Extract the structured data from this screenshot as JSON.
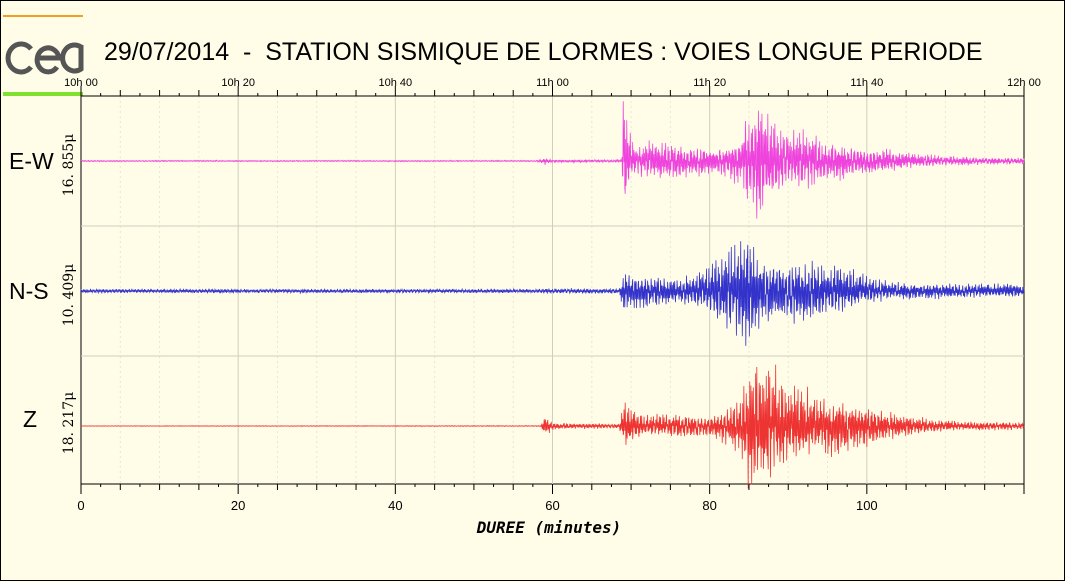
{
  "title": "29/07/2014  -  STATION SISMIQUE DE LORMES : VOIES LONGUE PERIODE",
  "logo": {
    "text": "cea",
    "colors": {
      "top_bar": "#f0a020",
      "bottom_bar": "#80e030",
      "letters": "#555555"
    }
  },
  "chart_data": {
    "type": "line",
    "xlabel": "DUREE (minutes)",
    "x_range": [
      0,
      120
    ],
    "top_axis": {
      "ticks": [
        0,
        20,
        40,
        60,
        80,
        100,
        120
      ],
      "labels": [
        "10h 00",
        "10h 20",
        "10h 40",
        "11h 00",
        "11h 20",
        "11h 40",
        "12h 00"
      ]
    },
    "bottom_axis": {
      "ticks": [
        0,
        20,
        40,
        60,
        80,
        100
      ],
      "labels": [
        "0",
        "20",
        "40",
        "60",
        "80",
        "100"
      ]
    },
    "grid": true,
    "series": [
      {
        "name": "E-W",
        "amplitude_label": "16. 855μ",
        "color": "#ee44dd",
        "envelope": [
          [
            0,
            0.01
          ],
          [
            58,
            0.01
          ],
          [
            59,
            0.06
          ],
          [
            60,
            0.02
          ],
          [
            68.8,
            0.02
          ],
          [
            69.0,
            1.0
          ],
          [
            69.6,
            0.55
          ],
          [
            70.5,
            0.25
          ],
          [
            73,
            0.35
          ],
          [
            77,
            0.25
          ],
          [
            80,
            0.22
          ],
          [
            82,
            0.25
          ],
          [
            84,
            0.4
          ],
          [
            85,
            0.85
          ],
          [
            86,
            1.0
          ],
          [
            87,
            0.8
          ],
          [
            88,
            0.7
          ],
          [
            90,
            0.45
          ],
          [
            92,
            0.5
          ],
          [
            95,
            0.35
          ],
          [
            98,
            0.25
          ],
          [
            100,
            0.22
          ],
          [
            103,
            0.18
          ],
          [
            106,
            0.12
          ],
          [
            110,
            0.08
          ],
          [
            115,
            0.06
          ],
          [
            120,
            0.05
          ]
        ]
      },
      {
        "name": "N-S",
        "amplitude_label": "10. 409μ",
        "color": "#3333cc",
        "envelope": [
          [
            0,
            0.03
          ],
          [
            58,
            0.03
          ],
          [
            59,
            0.04
          ],
          [
            68.5,
            0.04
          ],
          [
            69,
            0.3
          ],
          [
            71,
            0.25
          ],
          [
            76,
            0.2
          ],
          [
            79,
            0.3
          ],
          [
            81,
            0.5
          ],
          [
            82,
            0.65
          ],
          [
            83,
            0.7
          ],
          [
            85,
            1.0
          ],
          [
            86,
            0.55
          ],
          [
            88,
            0.45
          ],
          [
            91,
            0.45
          ],
          [
            93,
            0.55
          ],
          [
            95,
            0.35
          ],
          [
            97,
            0.4
          ],
          [
            99,
            0.25
          ],
          [
            103,
            0.15
          ],
          [
            110,
            0.12
          ],
          [
            120,
            0.1
          ]
        ]
      },
      {
        "name": "Z",
        "amplitude_label": "18. 217μ",
        "color": "#ee3333",
        "envelope": [
          [
            0,
            0.004
          ],
          [
            58.5,
            0.006
          ],
          [
            59.0,
            0.15
          ],
          [
            60,
            0.05
          ],
          [
            68.5,
            0.03
          ],
          [
            69.2,
            0.35
          ],
          [
            70,
            0.25
          ],
          [
            72,
            0.15
          ],
          [
            77,
            0.18
          ],
          [
            80,
            0.15
          ],
          [
            83,
            0.3
          ],
          [
            84,
            0.5
          ],
          [
            85,
            0.9
          ],
          [
            86,
            1.0
          ],
          [
            87,
            0.9
          ],
          [
            88,
            0.85
          ],
          [
            90,
            0.55
          ],
          [
            92,
            0.55
          ],
          [
            94,
            0.4
          ],
          [
            96,
            0.45
          ],
          [
            98,
            0.35
          ],
          [
            100,
            0.3
          ],
          [
            102,
            0.22
          ],
          [
            105,
            0.15
          ],
          [
            110,
            0.08
          ],
          [
            115,
            0.06
          ],
          [
            120,
            0.05
          ]
        ]
      }
    ]
  }
}
